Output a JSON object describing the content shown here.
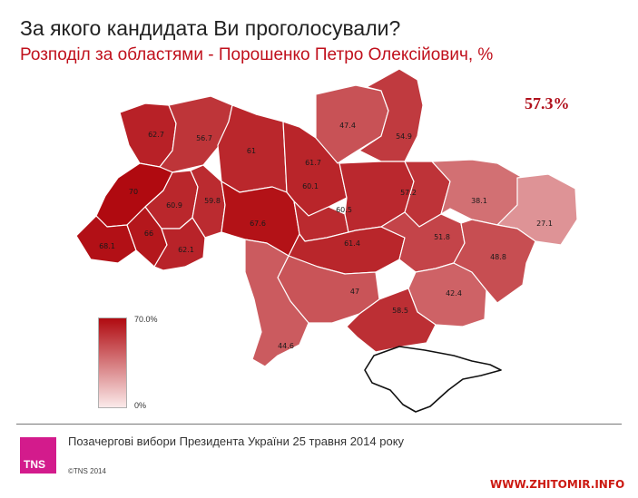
{
  "title": "За якого кандидата Ви проголосували?",
  "subtitle": "Розподіл за областями - Порошенко Петро Олексійович, %",
  "national_result": "57.3%",
  "legend": {
    "max_label": "70.0%",
    "min_label": "0%",
    "max_color": "#b00a10",
    "min_color": "#fbeaea"
  },
  "footer": {
    "text": "Позачергові вибори Президента України 25 травня 2014 року",
    "logo": "TNS",
    "copyright": "©TNS 2014",
    "site": "WWW.ZHITOMIR.INFO"
  },
  "regions": [
    {
      "id": "volyn",
      "value": 62.7,
      "label": "62.7"
    },
    {
      "id": "rivne",
      "value": 56.7,
      "label": "56.7"
    },
    {
      "id": "zhytomyr",
      "value": 61,
      "label": "61"
    },
    {
      "id": "kyiv",
      "value": 61.7,
      "label": "61.7"
    },
    {
      "id": "chernihiv",
      "value": 47.4,
      "label": "47.4"
    },
    {
      "id": "sumy",
      "value": 54.9,
      "label": "54.9"
    },
    {
      "id": "lviv",
      "value": 70,
      "label": "70"
    },
    {
      "id": "ternopil",
      "value": 60.9,
      "label": "60.9"
    },
    {
      "id": "khmelnytskyi",
      "value": 59.8,
      "label": "59.8"
    },
    {
      "id": "vinnytsia",
      "value": 67.6,
      "label": "67.6"
    },
    {
      "id": "cherkasy",
      "value": 60.1,
      "label": "60.1"
    },
    {
      "id": "poltava",
      "value": 60.5,
      "label": "60.5"
    },
    {
      "id": "kharkiv",
      "value": 57.2,
      "label": "57.2"
    },
    {
      "id": "luhansk",
      "value": 38.1,
      "label": "38.1"
    },
    {
      "id": "zakarpattia",
      "value": 68.1,
      "label": "68.1"
    },
    {
      "id": "ivano_frankivsk",
      "value": 66,
      "label": "66"
    },
    {
      "id": "chernivtsi",
      "value": 62.1,
      "label": "62.1"
    },
    {
      "id": "kirovohrad",
      "value": 61.4,
      "label": "61.4"
    },
    {
      "id": "dnipropetrovsk",
      "value": 51.8,
      "label": "51.8"
    },
    {
      "id": "donetsk",
      "value": 27.1,
      "label": "27.1"
    },
    {
      "id": "mykolaiv",
      "value": 47,
      "label": "47"
    },
    {
      "id": "zaporizhzhia",
      "value": 42.4,
      "label": "42.4"
    },
    {
      "id": "odesa",
      "value": 44.6,
      "label": "44.6"
    },
    {
      "id": "kherson",
      "value": 58.5,
      "label": "58.5"
    },
    {
      "id": "east_border",
      "value": 48.8,
      "label": "48.8"
    }
  ]
}
